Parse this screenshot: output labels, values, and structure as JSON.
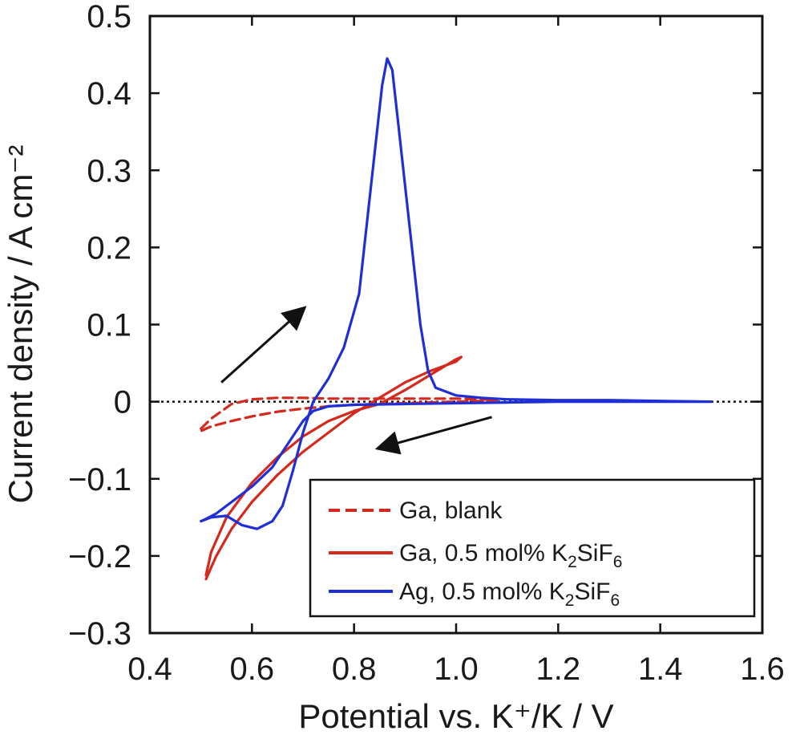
{
  "chart_data": {
    "type": "line",
    "xlabel": "Potential vs. K⁺/K / V",
    "ylabel": "Current density / A cm⁻²",
    "xlim": [
      0.4,
      1.6
    ],
    "ylim": [
      -0.3,
      0.5
    ],
    "xticks": [
      "0.4",
      "0.6",
      "0.8",
      "1.0",
      "1.2",
      "1.4",
      "1.6"
    ],
    "yticks": [
      "0.5",
      "0.4",
      "0.3",
      "0.2",
      "0.1",
      "0",
      "−0.1",
      "−0.2",
      "−0.3"
    ],
    "zero_line": "dotted",
    "legend_position": "bottom-right",
    "legend": [
      {
        "label": "Ga, blank",
        "label_main": "Ga, blank",
        "sub1": "",
        "mid": "",
        "sub2": "",
        "color": "#d42a1e",
        "style": "dashed"
      },
      {
        "label": "Ga, 0.5 mol% K2SiF6",
        "label_main": "Ga, 0.5 mol% K",
        "sub1": "2",
        "mid": "SiF",
        "sub2": "6",
        "color": "#d42a1e",
        "style": "solid"
      },
      {
        "label": "Ag, 0.5 mol% K2SiF6",
        "label_main": "Ag, 0.5 mol% K",
        "sub1": "2",
        "mid": "SiF",
        "sub2": "6",
        "color": "#1f2fd6",
        "style": "solid"
      }
    ],
    "annotations": [
      {
        "type": "arrow",
        "meaning": "anodic scan direction",
        "from": [
          0.54,
          0.025
        ],
        "to": [
          0.7,
          0.12
        ]
      },
      {
        "type": "arrow",
        "meaning": "cathodic scan direction",
        "from": [
          1.07,
          -0.02
        ],
        "to": [
          0.85,
          -0.06
        ]
      }
    ],
    "series": [
      {
        "legend_index": 0,
        "color": "#d42a1e",
        "dashed": true,
        "x": [
          0.5,
          0.52,
          0.56,
          0.6,
          0.65,
          0.7,
          0.75,
          0.8,
          0.85,
          0.9,
          0.95,
          1.0,
          1.05,
          1.08,
          1.05,
          1.0,
          0.95,
          0.9,
          0.85,
          0.8,
          0.75,
          0.7,
          0.65,
          0.6,
          0.56,
          0.52,
          0.5
        ],
        "y": [
          -0.035,
          -0.022,
          -0.003,
          0.003,
          0.005,
          0.005,
          0.004,
          0.004,
          0.004,
          0.004,
          0.004,
          0.004,
          0.003,
          0.002,
          0.001,
          0.0,
          -0.001,
          -0.002,
          -0.003,
          -0.004,
          -0.006,
          -0.009,
          -0.013,
          -0.019,
          -0.025,
          -0.032,
          -0.038
        ]
      },
      {
        "legend_index": 1,
        "color": "#d42a1e",
        "dashed": false,
        "x": [
          0.51,
          0.53,
          0.56,
          0.6,
          0.65,
          0.7,
          0.75,
          0.8,
          0.85,
          0.9,
          0.95,
          1.0,
          1.01,
          1.0,
          0.95,
          0.9,
          0.85,
          0.8,
          0.75,
          0.7,
          0.65,
          0.6,
          0.55,
          0.52,
          0.51
        ],
        "y": [
          -0.23,
          -0.2,
          -0.165,
          -0.13,
          -0.095,
          -0.065,
          -0.04,
          -0.015,
          0.005,
          0.025,
          0.04,
          0.052,
          0.058,
          0.055,
          0.035,
          0.015,
          -0.003,
          -0.012,
          -0.025,
          -0.045,
          -0.072,
          -0.105,
          -0.15,
          -0.195,
          -0.225
        ]
      },
      {
        "legend_index": 2,
        "color": "#1f2fd6",
        "dashed": false,
        "x": [
          0.5,
          0.52,
          0.55,
          0.58,
          0.61,
          0.64,
          0.66,
          0.68,
          0.7,
          0.72,
          0.75,
          0.78,
          0.81,
          0.84,
          0.855,
          0.865,
          0.875,
          0.89,
          0.91,
          0.93,
          0.945,
          0.96,
          1.0,
          1.05,
          1.1,
          1.2,
          1.3,
          1.4,
          1.5,
          1.45,
          1.4,
          1.3,
          1.2,
          1.1,
          1.0,
          0.9,
          0.8,
          0.75,
          0.72,
          0.7,
          0.67,
          0.64,
          0.6,
          0.56,
          0.53,
          0.51,
          0.5
        ],
        "y": [
          -0.155,
          -0.15,
          -0.148,
          -0.16,
          -0.165,
          -0.155,
          -0.135,
          -0.09,
          -0.04,
          0.0,
          0.03,
          0.07,
          0.14,
          0.32,
          0.41,
          0.445,
          0.43,
          0.34,
          0.22,
          0.1,
          0.04,
          0.018,
          0.008,
          0.005,
          0.003,
          0.002,
          0.002,
          0.001,
          0.0,
          0.0,
          0.0,
          0.0,
          0.0,
          -0.001,
          -0.002,
          -0.003,
          -0.004,
          -0.006,
          -0.012,
          -0.025,
          -0.055,
          -0.085,
          -0.11,
          -0.13,
          -0.145,
          -0.152,
          -0.155
        ]
      }
    ]
  }
}
